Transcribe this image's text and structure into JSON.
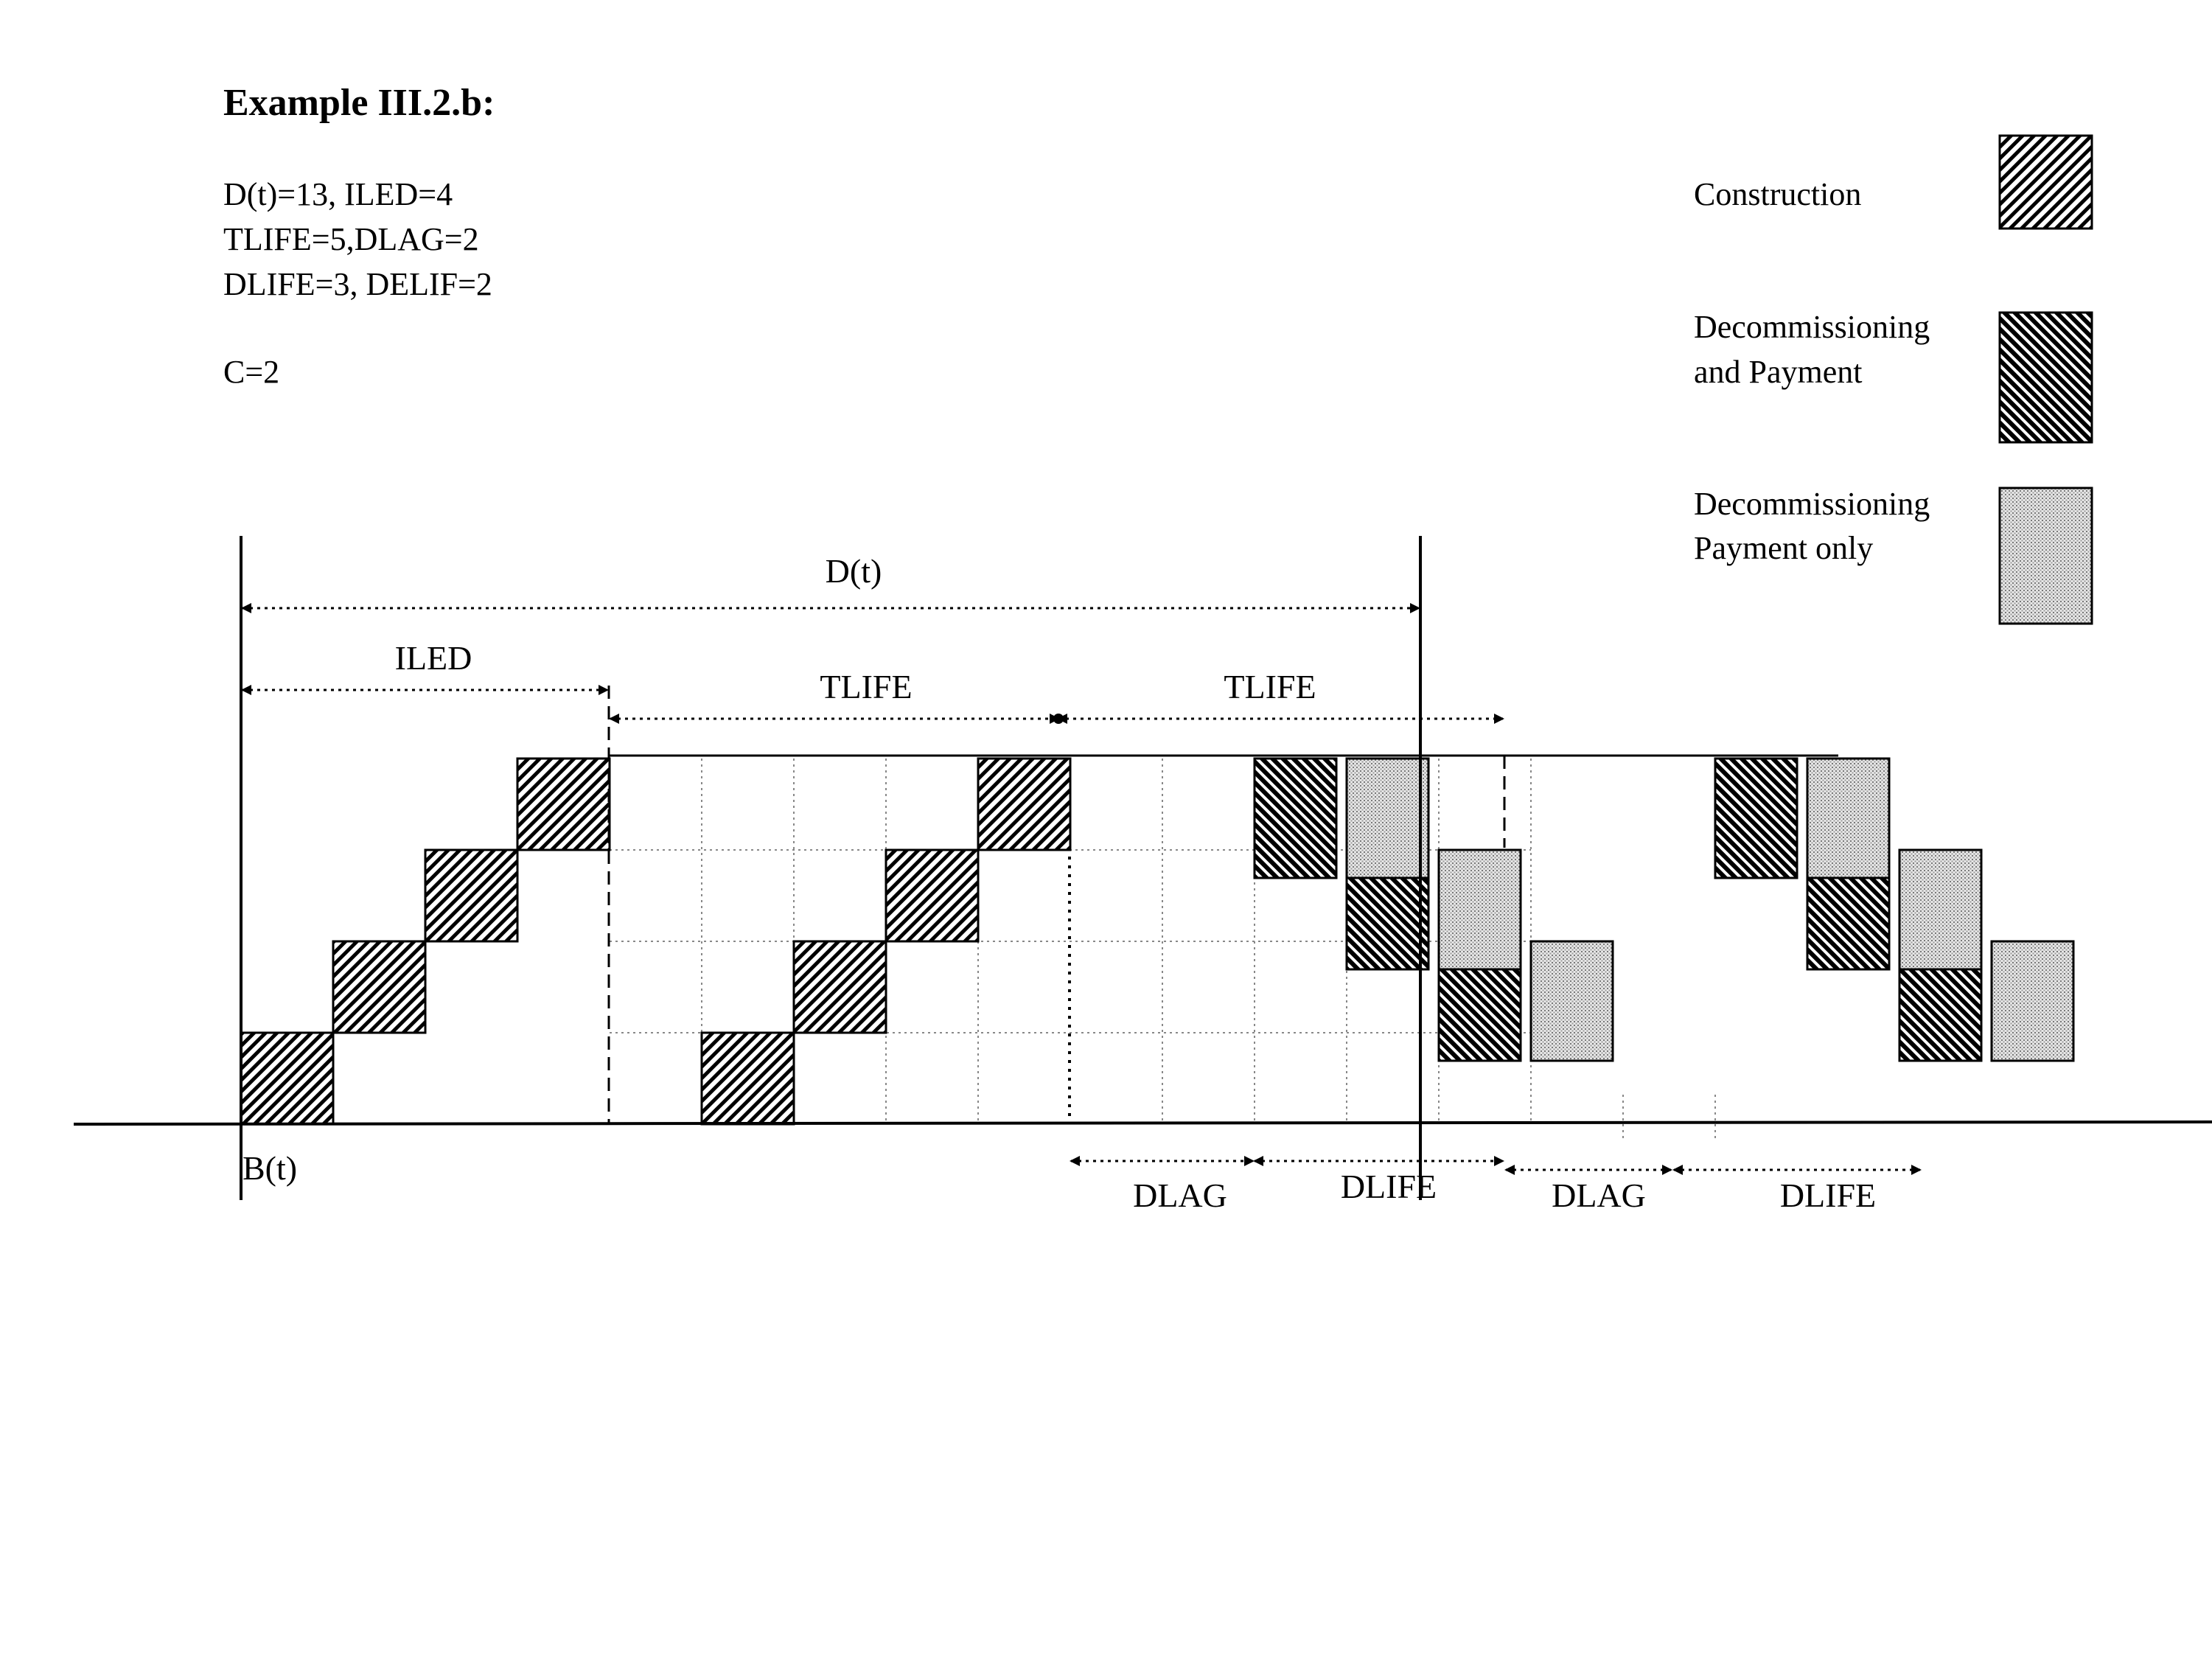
{
  "title": "Example III.2.b:",
  "params": [
    "D(t)=13, ILED=4",
    "TLIFE=5,DLAG=2",
    "DLIFE=3, DELIF=2",
    "C=2"
  ],
  "legend": [
    {
      "lines": [
        "Construction"
      ],
      "pattern": "construction"
    },
    {
      "lines": [
        "Decommissioning",
        "and Payment"
      ],
      "pattern": "decomm"
    },
    {
      "lines": [
        "Decommissioning",
        "Payment only"
      ],
      "pattern": "payment"
    }
  ],
  "labels": {
    "dt": "D(t)",
    "iled": "ILED",
    "tlife1": "TLIFE",
    "tlife2": "TLIFE",
    "bt": "B(t)",
    "dlag1": "DLAG",
    "dlife1": "DLIFE",
    "dlag2": "DLAG",
    "dlife2": "DLIFE"
  },
  "grid": {
    "time_units": 20,
    "levels": 4,
    "cells": {
      "construction": [
        [
          0,
          1
        ],
        [
          1,
          2
        ],
        [
          2,
          3
        ],
        [
          3,
          4
        ],
        [
          5,
          1
        ],
        [
          6,
          2
        ],
        [
          7,
          3
        ],
        [
          8,
          4
        ]
      ],
      "decomm": [
        [
          11,
          4
        ],
        [
          12,
          3
        ],
        [
          13,
          2
        ],
        [
          16,
          4
        ],
        [
          17,
          3
        ],
        [
          18,
          2
        ]
      ],
      "payment": [
        [
          12,
          4
        ],
        [
          13,
          3
        ],
        [
          14,
          2
        ],
        [
          17,
          4
        ],
        [
          18,
          3
        ],
        [
          19,
          2
        ]
      ]
    }
  },
  "colors": {
    "ink": "#000000",
    "background": "#ffffff",
    "pattern_fill": "#ffffff",
    "payment_stipple": "#777777",
    "grid": "#888888"
  }
}
